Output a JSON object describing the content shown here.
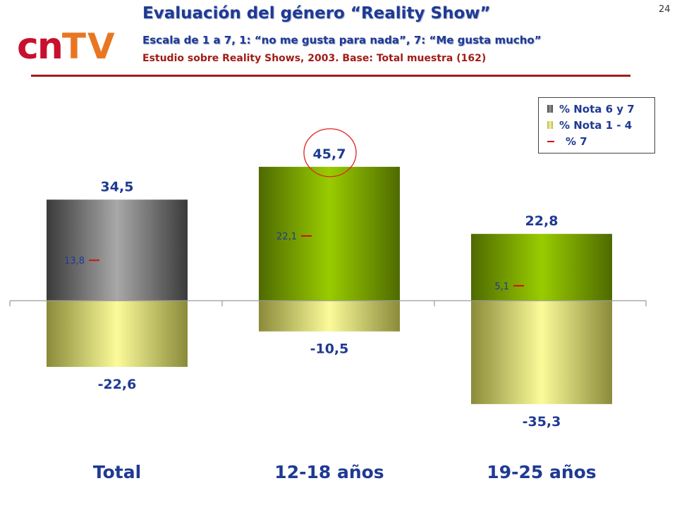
{
  "header": {
    "logo_cn": "cn",
    "logo_tv": "TV",
    "title": "Evaluación del género “Reality Show”",
    "subtitle": "Escala de 1 a 7, 1: “no me gusta para nada”, 7: “Me gusta mucho”",
    "source": "Estudio sobre Reality Shows, 2003. Base: Total muestra (162)",
    "page_number": "24"
  },
  "colors": {
    "title": "#1f3a93",
    "source": "#a01e16",
    "marker": "#d01010"
  },
  "chart_data": {
    "type": "bar",
    "categories": [
      "Total",
      "12-18 años",
      "19-25 años"
    ],
    "series": [
      {
        "name": "% Nota 6 y 7",
        "values": [
          34.5,
          45.7,
          22.8
        ],
        "labels": [
          "34,5",
          "45,7",
          "22,8"
        ]
      },
      {
        "name": "% Nota 1 - 4",
        "values": [
          -22.6,
          -10.5,
          -35.3
        ],
        "labels": [
          "-22,6",
          "-10,5",
          "-35,3"
        ]
      },
      {
        "name": "% 7",
        "values": [
          13.8,
          22.1,
          5.1
        ],
        "labels": [
          "13,8",
          "22,1",
          "5,1"
        ]
      }
    ],
    "highlighted": "45,7",
    "legend_position": "top-right",
    "grid": false
  }
}
